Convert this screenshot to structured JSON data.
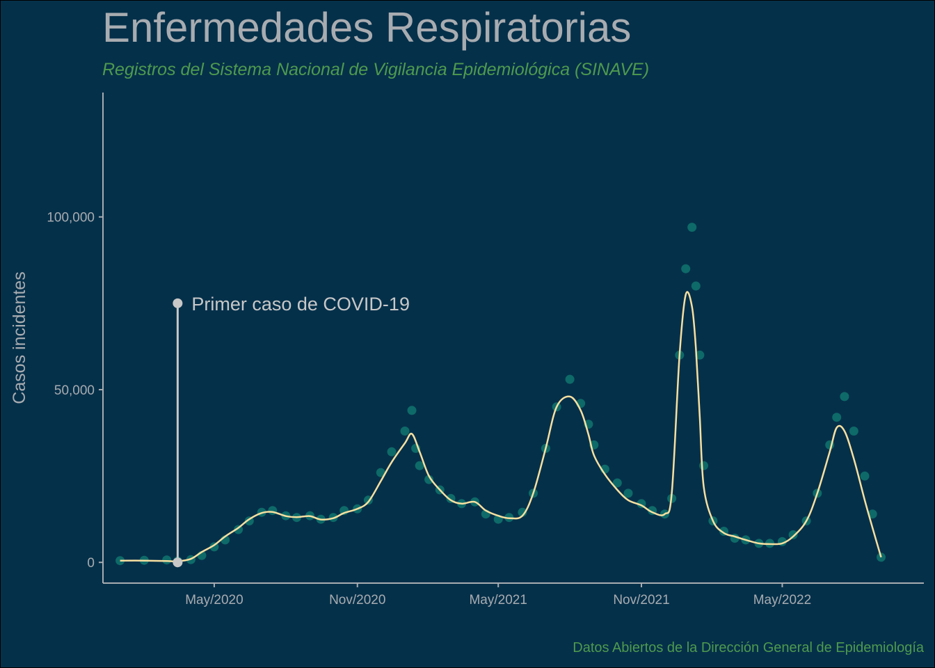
{
  "title": "Enfermedades Respiratorias",
  "subtitle": "Registros del Sistema Nacional de Vigilancia Epidemiológica (SINAVE)",
  "caption": "Datos Abiertos de la Dirección General de Epidemiología",
  "colors": {
    "background": "#05304a",
    "points": "#0e6a68",
    "smooth": "#f7e0a0",
    "annotation": "#c8c8c8",
    "axis_text": "#a8acb0",
    "subtitle": "#4e9a4e"
  },
  "chart_data": {
    "type": "scatter",
    "title": "Enfermedades Respiratorias",
    "subtitle": "Registros del Sistema Nacional de Vigilancia Epidemiológica (SINAVE)",
    "xlabel": "",
    "ylabel": "Casos incidentes",
    "x_range": [
      "2019-12-10",
      "2022-10-30"
    ],
    "ylim": [
      -6000,
      136000
    ],
    "x_ticks": [
      {
        "date": "2020-05-01",
        "label": "May/2020"
      },
      {
        "date": "2020-11-01",
        "label": "Nov/2020"
      },
      {
        "date": "2021-05-01",
        "label": "May/2021"
      },
      {
        "date": "2021-11-01",
        "label": "Nov/2021"
      },
      {
        "date": "2022-05-01",
        "label": "May/2022"
      }
    ],
    "y_ticks": [
      {
        "value": 0,
        "label": "0"
      },
      {
        "value": 50000,
        "label": "50,000"
      },
      {
        "value": 100000,
        "label": "100,000"
      }
    ],
    "grid": false,
    "legend": "none",
    "series": [
      {
        "type": "points",
        "x": [
          "2020-01-01",
          "2020-02-01",
          "2020-03-01",
          "2020-03-15",
          "2020-04-01",
          "2020-04-15",
          "2020-05-01",
          "2020-05-15",
          "2020-06-01",
          "2020-06-15",
          "2020-07-01",
          "2020-07-15",
          "2020-08-01",
          "2020-08-15",
          "2020-09-01",
          "2020-09-15",
          "2020-10-01",
          "2020-10-15",
          "2020-11-01",
          "2020-11-15",
          "2020-12-01",
          "2020-12-15",
          "2021-01-01",
          "2021-01-10",
          "2021-01-15",
          "2021-01-20",
          "2021-02-01",
          "2021-02-15",
          "2021-03-01",
          "2021-03-15",
          "2021-04-01",
          "2021-04-15",
          "2021-05-01",
          "2021-05-15",
          "2021-06-01",
          "2021-06-15",
          "2021-07-01",
          "2021-07-15",
          "2021-08-01",
          "2021-08-15",
          "2021-08-25",
          "2021-09-01",
          "2021-09-15",
          "2021-10-01",
          "2021-10-15",
          "2021-11-01",
          "2021-11-15",
          "2021-12-01",
          "2021-12-10",
          "2021-12-20",
          "2021-12-28",
          "2022-01-05",
          "2022-01-10",
          "2022-01-15",
          "2022-01-20",
          "2022-02-01",
          "2022-02-15",
          "2022-03-01",
          "2022-03-15",
          "2022-04-01",
          "2022-04-15",
          "2022-05-01",
          "2022-05-15",
          "2022-06-01",
          "2022-06-15",
          "2022-07-01",
          "2022-07-10",
          "2022-07-20",
          "2022-08-01",
          "2022-08-15",
          "2022-08-25",
          "2022-09-05"
        ],
        "y": [
          500,
          600,
          700,
          400,
          800,
          2000,
          4500,
          6500,
          9500,
          12000,
          14500,
          15000,
          13500,
          13000,
          13500,
          12500,
          13000,
          15000,
          15500,
          18000,
          26000,
          32000,
          38000,
          44000,
          33000,
          28000,
          24000,
          21000,
          18500,
          17000,
          17500,
          14000,
          12500,
          13000,
          14500,
          20000,
          33000,
          45000,
          53000,
          46000,
          40000,
          34000,
          27000,
          23000,
          20000,
          17000,
          15000,
          14000,
          18500,
          60000,
          85000,
          97000,
          80000,
          60000,
          28000,
          12000,
          9000,
          7000,
          6500,
          5500,
          5500,
          6000,
          8000,
          12000,
          20000,
          34000,
          42000,
          48000,
          38000,
          25000,
          14000,
          1500
        ]
      },
      {
        "type": "smooth",
        "x": [
          "2020-01-01",
          "2020-02-01",
          "2020-03-01",
          "2020-03-15",
          "2020-04-01",
          "2020-04-15",
          "2020-05-01",
          "2020-05-15",
          "2020-06-01",
          "2020-06-15",
          "2020-07-01",
          "2020-07-15",
          "2020-08-01",
          "2020-08-15",
          "2020-09-01",
          "2020-09-15",
          "2020-10-01",
          "2020-10-15",
          "2020-11-01",
          "2020-11-15",
          "2020-12-01",
          "2020-12-15",
          "2021-01-01",
          "2021-01-10",
          "2021-01-20",
          "2021-02-01",
          "2021-02-15",
          "2021-03-01",
          "2021-03-15",
          "2021-04-01",
          "2021-04-15",
          "2021-05-01",
          "2021-05-15",
          "2021-06-01",
          "2021-06-15",
          "2021-07-01",
          "2021-07-15",
          "2021-08-01",
          "2021-08-15",
          "2021-08-25",
          "2021-09-01",
          "2021-09-15",
          "2021-10-01",
          "2021-10-15",
          "2021-11-01",
          "2021-11-15",
          "2021-12-01",
          "2021-12-10",
          "2021-12-20",
          "2021-12-28",
          "2022-01-05",
          "2022-01-10",
          "2022-01-15",
          "2022-01-20",
          "2022-02-01",
          "2022-02-15",
          "2022-03-01",
          "2022-03-15",
          "2022-04-01",
          "2022-04-15",
          "2022-05-01",
          "2022-05-15",
          "2022-06-01",
          "2022-06-15",
          "2022-07-01",
          "2022-07-10",
          "2022-07-20",
          "2022-08-01",
          "2022-08-15",
          "2022-08-25",
          "2022-09-05"
        ],
        "y": [
          500,
          500,
          400,
          300,
          1000,
          3000,
          5000,
          7500,
          10000,
          12500,
          14300,
          14600,
          13400,
          13100,
          13400,
          12400,
          12800,
          14300,
          15500,
          17500,
          23500,
          29000,
          34500,
          37200,
          32000,
          25000,
          21000,
          18000,
          17000,
          17500,
          15000,
          13500,
          12800,
          13500,
          20000,
          33000,
          45000,
          48000,
          44000,
          37000,
          31000,
          25500,
          21000,
          18000,
          16500,
          14500,
          14000,
          20000,
          60000,
          77500,
          74000,
          62000,
          42000,
          22000,
          12000,
          8500,
          7500,
          6500,
          5500,
          5300,
          5500,
          7500,
          12000,
          20000,
          32000,
          39000,
          38000,
          30000,
          18000,
          10000,
          1500
        ]
      }
    ],
    "annotations": [
      {
        "type": "vline",
        "x": "2020-03-15",
        "y_start": 0,
        "y_end": 75000,
        "label": "Primer caso de COVID-19"
      }
    ]
  }
}
